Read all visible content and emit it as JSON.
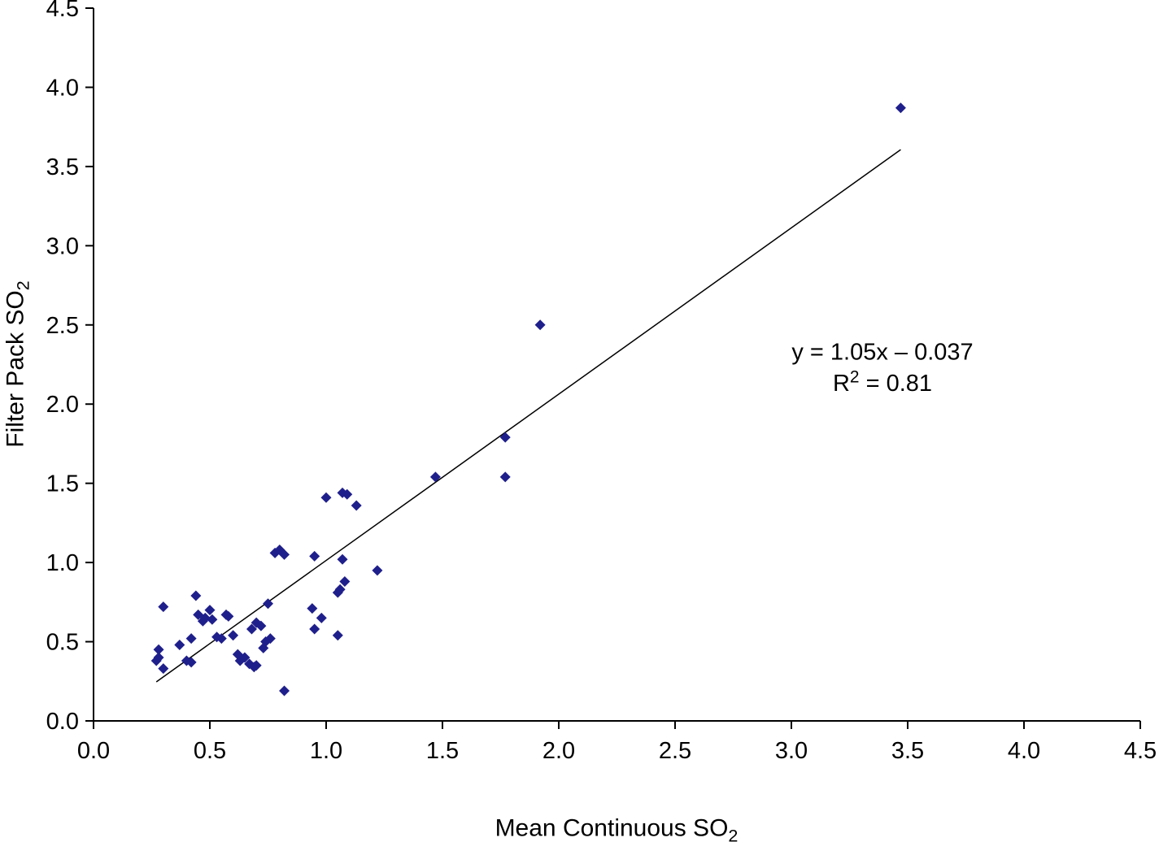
{
  "chart_data": {
    "type": "scatter",
    "title": "",
    "xlabel": {
      "text": "Mean Continuous SO",
      "subscript": "2"
    },
    "ylabel": {
      "text": "Filter Pack SO",
      "subscript": "2"
    },
    "xlim": [
      0,
      4.5
    ],
    "ylim": [
      0,
      4.5
    ],
    "grid": false,
    "legend": "none",
    "x_ticks": [
      "0.0",
      "0.5",
      "1.0",
      "1.5",
      "2.0",
      "2.5",
      "3.0",
      "3.5",
      "4.0",
      "4.5"
    ],
    "y_ticks": [
      "0.0",
      "0.5",
      "1.0",
      "1.5",
      "2.0",
      "2.5",
      "3.0",
      "3.5",
      "4.0",
      "4.5"
    ],
    "points": [
      [
        0.27,
        0.38
      ],
      [
        0.28,
        0.4
      ],
      [
        0.28,
        0.45
      ],
      [
        0.3,
        0.33
      ],
      [
        0.3,
        0.72
      ],
      [
        0.37,
        0.48
      ],
      [
        0.4,
        0.38
      ],
      [
        0.42,
        0.37
      ],
      [
        0.42,
        0.52
      ],
      [
        0.44,
        0.79
      ],
      [
        0.45,
        0.67
      ],
      [
        0.47,
        0.63
      ],
      [
        0.48,
        0.65
      ],
      [
        0.5,
        0.7
      ],
      [
        0.51,
        0.64
      ],
      [
        0.53,
        0.53
      ],
      [
        0.55,
        0.52
      ],
      [
        0.57,
        0.67
      ],
      [
        0.58,
        0.66
      ],
      [
        0.6,
        0.54
      ],
      [
        0.62,
        0.42
      ],
      [
        0.63,
        0.38
      ],
      [
        0.65,
        0.4
      ],
      [
        0.67,
        0.36
      ],
      [
        0.69,
        0.34
      ],
      [
        0.7,
        0.35
      ],
      [
        0.68,
        0.58
      ],
      [
        0.7,
        0.62
      ],
      [
        0.72,
        0.6
      ],
      [
        0.73,
        0.46
      ],
      [
        0.74,
        0.5
      ],
      [
        0.76,
        0.52
      ],
      [
        0.75,
        0.74
      ],
      [
        0.78,
        1.06
      ],
      [
        0.8,
        1.08
      ],
      [
        0.82,
        1.05
      ],
      [
        0.82,
        0.19
      ],
      [
        0.94,
        0.71
      ],
      [
        0.95,
        0.58
      ],
      [
        0.95,
        1.04
      ],
      [
        0.98,
        0.65
      ],
      [
        1.0,
        1.41
      ],
      [
        1.05,
        0.54
      ],
      [
        1.05,
        0.81
      ],
      [
        1.06,
        0.83
      ],
      [
        1.07,
        1.44
      ],
      [
        1.08,
        0.88
      ],
      [
        1.09,
        1.43
      ],
      [
        1.07,
        1.02
      ],
      [
        1.13,
        1.36
      ],
      [
        1.22,
        0.95
      ],
      [
        1.47,
        1.54
      ],
      [
        1.77,
        1.54
      ],
      [
        1.77,
        1.79
      ],
      [
        1.92,
        2.5
      ],
      [
        3.47,
        3.87
      ]
    ],
    "trendline": {
      "slope": 1.05,
      "intercept": -0.037,
      "x_start": 0.27,
      "x_end": 3.47
    },
    "annotation": {
      "line1": "y = 1.05x – 0.037",
      "line2_base": "R",
      "line2_sup": "2",
      "line2_rest": " = 0.81"
    },
    "marker_color": "#1f1f8c",
    "line_color": "#000000",
    "axis_color": "#000000"
  }
}
